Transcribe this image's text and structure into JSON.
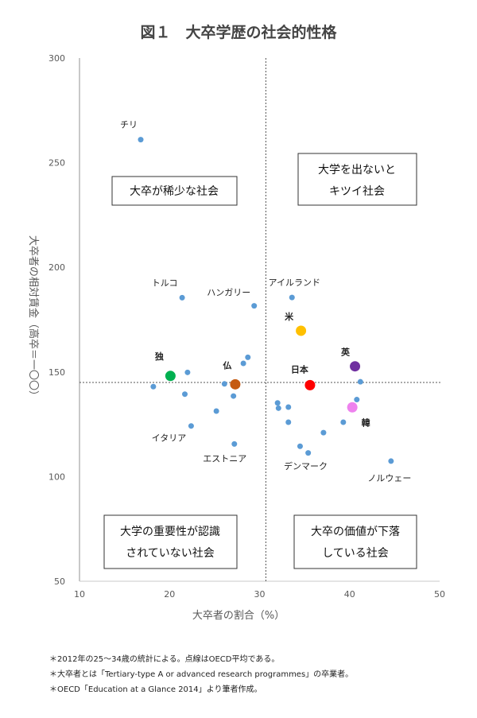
{
  "chart_data": {
    "type": "scatter",
    "title": "図１　大卒学歴の社会的性格",
    "xlabel": "大卒者の割合（%）",
    "ylabel": "大卒者の相対賃金（高卒＝一〇〇）",
    "xlim": [
      10,
      50
    ],
    "ylim": [
      50,
      300
    ],
    "xticks": [
      "10",
      "20",
      "30",
      "40",
      "50"
    ],
    "yticks": [
      "50",
      "100",
      "150",
      "200",
      "250",
      "300"
    ],
    "grid": false,
    "oecd_average": {
      "x": 30.7,
      "y": 145
    },
    "points": [
      {
        "label": "チリ",
        "x": 16.8,
        "y": 261,
        "color": "#5b9bd5"
      },
      {
        "label": "トルコ",
        "x": 21.4,
        "y": 185.5,
        "color": "#5b9bd5"
      },
      {
        "label": "ハンガリー",
        "x": 29.4,
        "y": 181.6,
        "color": "#5b9bd5"
      },
      {
        "label": "独",
        "x": 20.1,
        "y": 148.1,
        "color": "#00b050",
        "highlight": true
      },
      {
        "label": "",
        "x": 22.0,
        "y": 149.8,
        "color": "#5b9bd5"
      },
      {
        "label": "",
        "x": 18.2,
        "y": 143,
        "color": "#5b9bd5"
      },
      {
        "label": "",
        "x": 21.7,
        "y": 139.4,
        "color": "#5b9bd5"
      },
      {
        "label": "",
        "x": 26.1,
        "y": 144.3,
        "color": "#5b9bd5"
      },
      {
        "label": "仏",
        "x": 27.3,
        "y": 144.1,
        "color": "#c55a11",
        "highlight": true
      },
      {
        "label": "",
        "x": 27.1,
        "y": 138.5,
        "color": "#5b9bd5"
      },
      {
        "label": "",
        "x": 28.2,
        "y": 154.1,
        "color": "#5b9bd5"
      },
      {
        "label": "",
        "x": 28.7,
        "y": 157,
        "color": "#5b9bd5"
      },
      {
        "label": "",
        "x": 25.2,
        "y": 131.3,
        "color": "#5b9bd5"
      },
      {
        "label": "イタリア",
        "x": 22.4,
        "y": 124.2,
        "color": "#5b9bd5"
      },
      {
        "label": "エストニア",
        "x": 27.2,
        "y": 115.6,
        "color": "#5b9bd5"
      },
      {
        "label": "アイルランド",
        "x": 33.6,
        "y": 185.6,
        "color": "#5b9bd5"
      },
      {
        "label": "米",
        "x": 34.6,
        "y": 169.7,
        "color": "#ffc000",
        "highlight": true
      },
      {
        "label": "英",
        "x": 40.6,
        "y": 152.7,
        "color": "#7030a0",
        "highlight": true
      },
      {
        "label": "日本",
        "x": 35.6,
        "y": 143.7,
        "color": "#ff0000",
        "highlight": true
      },
      {
        "label": "",
        "x": 41.2,
        "y": 145.3,
        "color": "#5b9bd5"
      },
      {
        "label": "",
        "x": 40.8,
        "y": 136.8,
        "color": "#5b9bd5"
      },
      {
        "label": "韓",
        "x": 40.3,
        "y": 133.1,
        "color": "#ee82ee",
        "highlight": true
      },
      {
        "label": "",
        "x": 32.0,
        "y": 135.2,
        "color": "#5b9bd5"
      },
      {
        "label": "",
        "x": 32.1,
        "y": 132.7,
        "color": "#5b9bd5"
      },
      {
        "label": "",
        "x": 33.2,
        "y": 133.2,
        "color": "#5b9bd5"
      },
      {
        "label": "",
        "x": 33.2,
        "y": 126,
        "color": "#5b9bd5"
      },
      {
        "label": "",
        "x": 39.3,
        "y": 126,
        "color": "#5b9bd5"
      },
      {
        "label": "",
        "x": 37.1,
        "y": 121,
        "color": "#5b9bd5"
      },
      {
        "label": "デンマーク",
        "x": 34.5,
        "y": 114.5,
        "color": "#5b9bd5"
      },
      {
        "label": "",
        "x": 35.4,
        "y": 111.3,
        "color": "#5b9bd5"
      },
      {
        "label": "ノルウェー",
        "x": 44.6,
        "y": 107.4,
        "color": "#5b9bd5"
      }
    ],
    "quadrants": {
      "top_left": [
        "大卒が稀少な社会"
      ],
      "top_right": [
        "大学を出ないと",
        "キツイ社会"
      ],
      "bottom_left": [
        "大学の重要性が認識",
        "されていない社会"
      ],
      "bottom_right": [
        "大卒の価値が下落",
        "している社会"
      ]
    }
  },
  "notes": [
    "＊2012年の25～34歳の統計による。点線はOECD平均である。",
    "＊大卒者とは「Tertiary-type A or advanced research programmes」の卒業者。",
    "＊OECD「Education at a Glance 2014」より筆者作成。"
  ]
}
